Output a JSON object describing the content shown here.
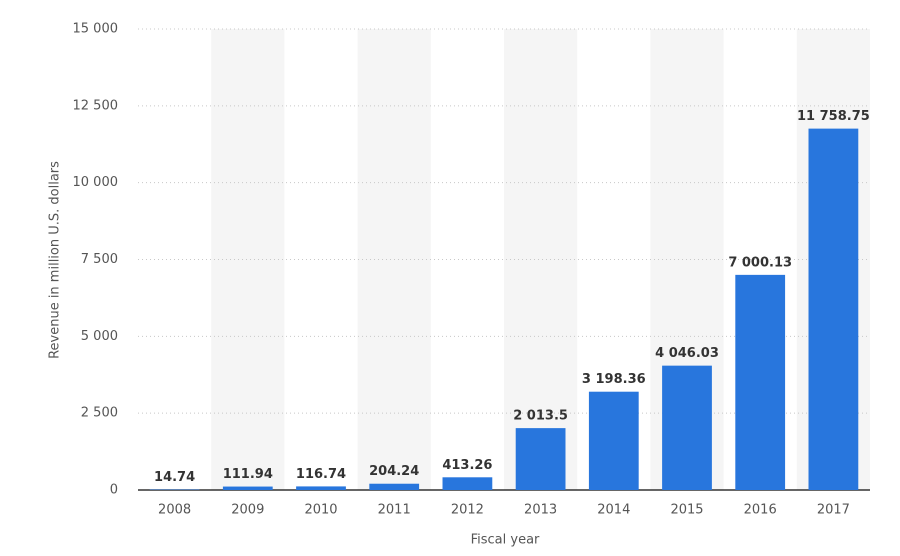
{
  "chart_data": {
    "type": "bar",
    "x_label": "Fiscal year",
    "y_label": "Revenue in million U.S. dollars",
    "categories": [
      "2008",
      "2009",
      "2010",
      "2011",
      "2012",
      "2013",
      "2014",
      "2015",
      "2016",
      "2017"
    ],
    "values": [
      14.74,
      111.94,
      116.74,
      204.24,
      413.26,
      2013.5,
      3198.36,
      4046.03,
      7000.13,
      11758.75
    ],
    "value_labels": [
      "14.74",
      "111.94",
      "116.74",
      "204.24",
      "413.26",
      "2 013.5",
      "3 198.36",
      "4 046.03",
      "7 000.13",
      "11 758.75"
    ],
    "color": "#2876dd",
    "ylim": [
      0,
      15000
    ],
    "yticks": [
      0,
      {
        "value": 2500,
        "label": "2 500"
      },
      {
        "value": 5000,
        "label": "5 000"
      },
      {
        "value": 7500,
        "label": "7 500"
      },
      {
        "value": 10000,
        "label": "10 000"
      },
      {
        "value": 12500,
        "label": "12 500"
      },
      {
        "value": 15000,
        "label": "15 000"
      }
    ],
    "grid": true
  }
}
